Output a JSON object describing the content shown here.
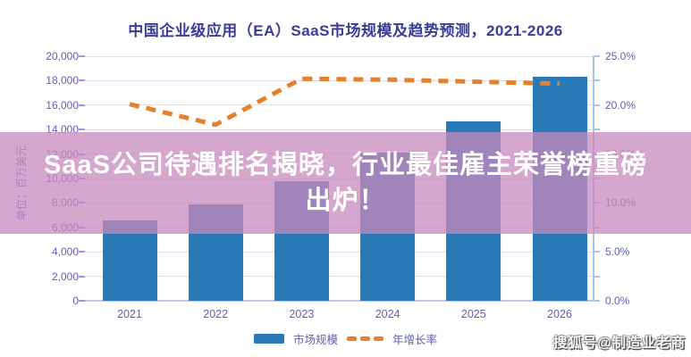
{
  "overlay_headline": "SaaS公司待遇排名揭晓，行业最佳雇主荣誉榜重磅出炉！",
  "watermark_text": "搜狐号@制造业老商",
  "chart_data": {
    "type": "bar",
    "subtype": "bar+line combo",
    "title": "中国企业级应用（EA）SaaS市场规模及趋势预测，2021-2026",
    "categories": [
      "2021",
      "2022",
      "2023",
      "2024",
      "2025",
      "2026"
    ],
    "series": [
      {
        "name": "市场规模",
        "type": "bar",
        "axis": "left",
        "unit": "百万美元",
        "values": [
          6600,
          7900,
          9800,
          12100,
          14700,
          18300
        ],
        "color": "#2879b5"
      },
      {
        "name": "年增长率",
        "type": "line",
        "style": "dashed",
        "axis": "right",
        "unit": "%",
        "values": [
          20.1,
          18.0,
          22.7,
          22.6,
          22.4,
          22.2
        ],
        "color": "#e5802d"
      }
    ],
    "ylabel_left": "单位：百万美元",
    "y_left_range": [
      0,
      20000
    ],
    "y_left_tick_step": 2000,
    "y_left_tick_labels": [
      "0",
      "2,000",
      "4,000",
      "6,000",
      "8,000",
      "10,000",
      "12,000",
      "14,000",
      "16,000",
      "18,000",
      "20,000"
    ],
    "y_right_range": [
      0,
      25
    ],
    "y_right_tick_step": 5,
    "y_right_minor_tick_step": 2.5,
    "y_right_tick_labels": [
      "0.0%",
      "5.0%",
      "10.0%",
      "15.0%",
      "20.0%",
      "25.0%"
    ],
    "grid": true,
    "legend_position": "bottom"
  }
}
